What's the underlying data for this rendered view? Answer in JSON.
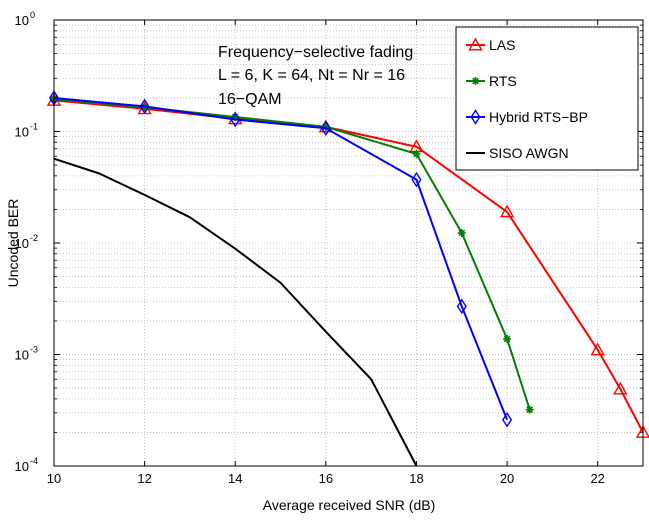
{
  "chart_data": {
    "type": "line",
    "xlabel": "Average received SNR (dB)",
    "ylabel": "Uncoded BER",
    "xlim": [
      10,
      23
    ],
    "ylim": [
      0.0001,
      1
    ],
    "yscale": "log",
    "grid": true,
    "legend_position": "top-right",
    "x_ticks": [
      10,
      12,
      14,
      16,
      18,
      20,
      22
    ],
    "y_ticks": [
      {
        "value": 1,
        "base": "10",
        "exp": "0"
      },
      {
        "value": 0.1,
        "base": "10",
        "exp": "-1"
      },
      {
        "value": 0.01,
        "base": "10",
        "exp": "-2"
      },
      {
        "value": 0.001,
        "base": "10",
        "exp": "-3"
      },
      {
        "value": 0.0001,
        "base": "10",
        "exp": "-4"
      }
    ],
    "annotation": [
      "Frequency−selective fading",
      "L = 6, K = 64, Nt = Nr = 16",
      "16−QAM"
    ],
    "series": [
      {
        "name": "LAS",
        "color": "#ff0000",
        "marker": "triangle",
        "x": [
          10,
          12,
          14,
          16,
          18,
          20,
          22,
          22.5,
          23
        ],
        "y": [
          0.19,
          0.16,
          0.13,
          0.11,
          0.073,
          0.019,
          0.0011,
          0.00049,
          0.0002
        ]
      },
      {
        "name": "RTS",
        "color": "#008000",
        "marker": "star",
        "x": [
          10,
          12,
          14,
          16,
          18,
          19,
          20,
          20.5
        ],
        "y": [
          0.195,
          0.165,
          0.135,
          0.11,
          0.063,
          0.0123,
          0.00138,
          0.00032
        ]
      },
      {
        "name": "Hybrid RTS−BP",
        "color": "#0000ff",
        "marker": "diamond",
        "x": [
          10,
          12,
          14,
          16,
          18,
          19,
          20
        ],
        "y": [
          0.2,
          0.168,
          0.128,
          0.107,
          0.037,
          0.0027,
          0.00026
        ]
      },
      {
        "name": "SISO AWGN",
        "color": "#000000",
        "marker": "none",
        "x": [
          10,
          11,
          12,
          13,
          14,
          15,
          16,
          17,
          18
        ],
        "y": [
          0.057,
          0.042,
          0.027,
          0.017,
          0.0089,
          0.0044,
          0.0016,
          0.0006,
          0.0001
        ]
      }
    ]
  }
}
